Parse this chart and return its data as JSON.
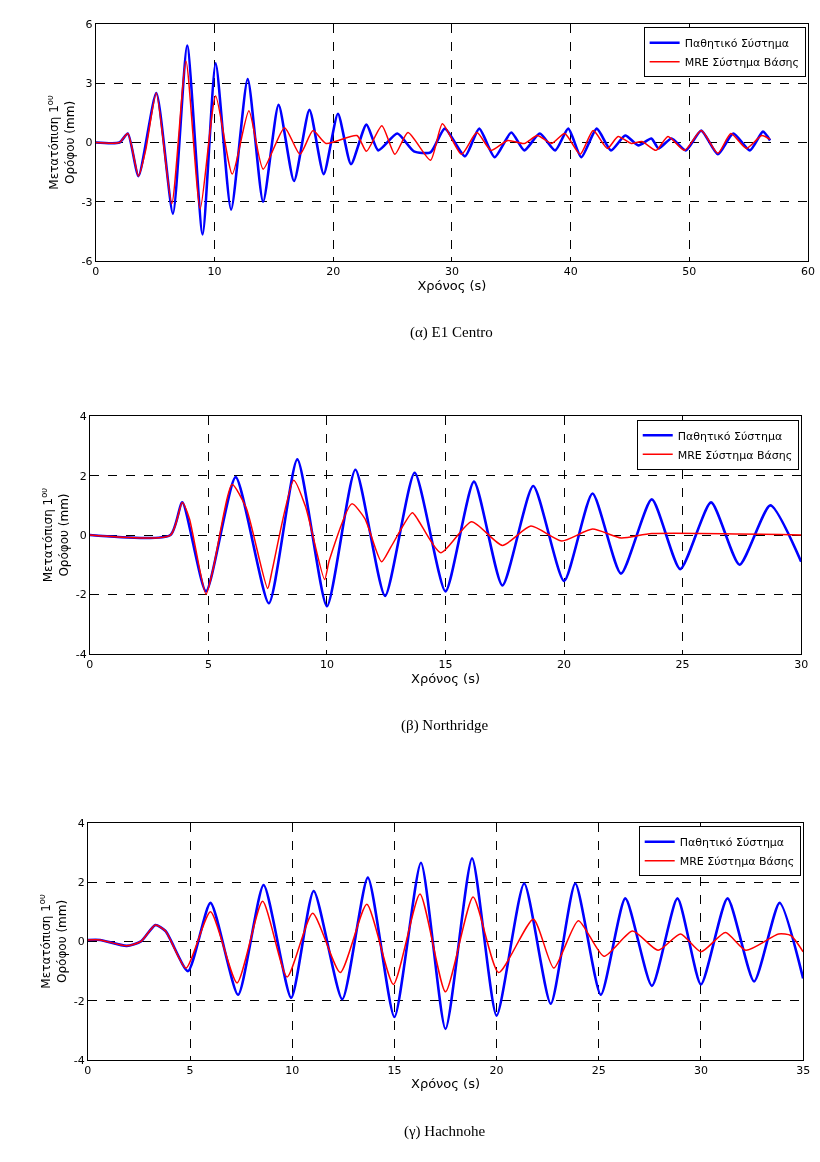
{
  "chart_data": [
    {
      "type": "line",
      "xlabel": "Χρόνος (s)",
      "ylabel": "Μετατόπιση 1$^{ου}$\nΟρόφου (mm)",
      "xlim": [
        0,
        60
      ],
      "xticks": [
        0,
        10,
        20,
        30,
        40,
        50,
        60
      ],
      "ylim": [
        -6,
        6
      ],
      "yticks": [
        -6,
        -3,
        0,
        3,
        6
      ],
      "grid": true,
      "legend": "top right",
      "line_style": "solid",
      "annotations": [
        "(α) E1 Centro"
      ],
      "series": [
        {
          "name": "Παθητικό Σύστημα",
          "color": "#0000ff",
          "x": [
            0,
            2,
            2.7,
            3.6,
            5.1,
            6.5,
            7.7,
            9.0,
            10.1,
            11.4,
            12.8,
            14.1,
            15.4,
            16.7,
            18.0,
            19.2,
            20.4,
            21.5,
            22.8,
            23.8,
            25.4,
            26.8,
            28.2,
            29.4,
            31.1,
            32.3,
            33.6,
            35,
            36.1,
            37.4,
            38.7,
            39.8,
            40.9,
            42.2,
            43.4,
            44.6,
            45.7,
            46.8,
            47.4,
            48.5,
            49.7,
            51,
            52.4,
            53.7,
            55.1,
            56.2,
            56.8
          ],
          "values": [
            0,
            0,
            0.45,
            -1.7,
            2.5,
            -3.6,
            4.9,
            -4.65,
            4.0,
            -3.4,
            3.2,
            -3.0,
            1.9,
            -1.95,
            1.65,
            -1.6,
            1.45,
            -1.1,
            0.9,
            -0.4,
            0.45,
            -0.45,
            -0.5,
            0.7,
            -0.7,
            0.7,
            -0.75,
            0.5,
            -0.4,
            0.45,
            -0.4,
            0.7,
            -0.75,
            0.7,
            -0.4,
            0.35,
            -0.15,
            0.2,
            -0.3,
            0.2,
            -0.4,
            0.6,
            -0.6,
            0.45,
            -0.4,
            0.55,
            0.1
          ]
        },
        {
          "name": "MRE Σύστημα Βάσης",
          "color": "#ff0000",
          "x": [
            0,
            2,
            2.7,
            3.6,
            4.2,
            5.1,
            6.4,
            7.6,
            8.8,
            10.1,
            11.5,
            12.9,
            14.1,
            15.9,
            17.2,
            18.3,
            19.4,
            22.0,
            22.8,
            24.1,
            25.2,
            26.3,
            28.2,
            29.2,
            30.8,
            32.1,
            33.3,
            34.7,
            36.1,
            37.2,
            38.4,
            39.5,
            40.8,
            41.9,
            43.1,
            44,
            45.1,
            46,
            47.2,
            48.2,
            49.6,
            51,
            52.4,
            53.5,
            54.8,
            56.1,
            56.8
          ],
          "values": [
            0,
            0,
            0.45,
            -1.7,
            -0.4,
            2.5,
            -3.1,
            4.1,
            -3.35,
            2.35,
            -1.6,
            1.6,
            -1.35,
            0.75,
            -0.6,
            0.6,
            -0.05,
            0.35,
            -0.45,
            0.85,
            -0.6,
            0.5,
            -0.9,
            0.95,
            -0.6,
            0.5,
            -0.4,
            0.1,
            -0.05,
            0.35,
            -0.05,
            0.45,
            -0.6,
            0.6,
            -0.3,
            0.3,
            -0.05,
            0.05,
            -0.4,
            0.3,
            -0.4,
            0.6,
            -0.55,
            0.45,
            -0.3,
            0.35,
            0.15
          ]
        }
      ]
    },
    {
      "type": "line",
      "xlabel": "Χρόνος (s)",
      "ylabel": "Μετατόπιση 1$^{ου}$\nΟρόφου (mm)",
      "xlim": [
        0,
        30
      ],
      "xticks": [
        0,
        5,
        10,
        15,
        20,
        25,
        30
      ],
      "ylim": [
        -4,
        4
      ],
      "yticks": [
        -4,
        -2,
        0,
        2,
        4
      ],
      "grid": true,
      "legend": "top right",
      "line_style": "solid",
      "annotations": [
        "(β) Northridge"
      ],
      "series": [
        {
          "name": "Παθητικό Σύστημα",
          "color": "#0000ff",
          "x": [
            0,
            3.4,
            3.9,
            4.9,
            6.15,
            7.55,
            8.75,
            10.0,
            11.2,
            12.45,
            13.7,
            15.0,
            16.2,
            17.4,
            18.7,
            20.0,
            21.2,
            22.4,
            23.7,
            24.9,
            26.2,
            27.4,
            28.7,
            30.0
          ],
          "values": [
            0,
            0,
            1.1,
            -1.9,
            1.95,
            -2.3,
            2.55,
            -2.4,
            2.2,
            -2.05,
            2.1,
            -1.9,
            1.8,
            -1.7,
            1.65,
            -1.55,
            1.4,
            -1.3,
            1.2,
            -1.15,
            1.1,
            -1.0,
            1.0,
            -0.9
          ]
        },
        {
          "name": "MRE Σύστημα Βάσης",
          "color": "#ff0000",
          "x": [
            0,
            3.4,
            3.9,
            4.2,
            4.9,
            5.2,
            6.0,
            6.6,
            7.5,
            7.7,
            8.6,
            9.1,
            9.9,
            10.1,
            11.05,
            11.6,
            12.3,
            12.7,
            13.6,
            13.85,
            14.8,
            16.1,
            17.4,
            18.6,
            19.9,
            21.2,
            22.4,
            23.7,
            30
          ],
          "values": [
            0,
            0,
            1.1,
            0.55,
            -2.0,
            -1.15,
            1.7,
            0.9,
            -1.8,
            -1.15,
            1.85,
            0.95,
            -1.5,
            -0.85,
            1.05,
            0.55,
            -0.9,
            -0.4,
            0.75,
            0.5,
            -0.6,
            0.45,
            -0.35,
            0.3,
            -0.2,
            0.2,
            -0.1,
            0.05,
            0
          ]
        }
      ]
    },
    {
      "type": "line",
      "xlabel": "Χρόνος (s)",
      "ylabel": "Μετατόπιση 1$^{ου}$\nΟρόφου (mm)",
      "xlim": [
        0,
        35
      ],
      "xticks": [
        0,
        5,
        10,
        15,
        20,
        25,
        30,
        35
      ],
      "ylim": [
        -4,
        4
      ],
      "yticks": [
        -4,
        -2,
        0,
        2,
        4
      ],
      "grid": true,
      "legend": "top right",
      "line_style": "solid",
      "annotations": [
        "(γ) Hachnohe"
      ],
      "series": [
        {
          "name": "Παθητικό Σύστημα",
          "color": "#0000ff",
          "x": [
            0,
            0.6,
            1.9,
            2.6,
            3.3,
            3.8,
            4.9,
            6.0,
            7.35,
            8.6,
            9.95,
            11.05,
            12.45,
            13.7,
            15.0,
            16.3,
            17.5,
            18.8,
            20.0,
            21.35,
            22.65,
            23.85,
            25.1,
            26.3,
            27.6,
            28.85,
            30.0,
            31.3,
            32.6,
            33.85,
            35
          ],
          "values": [
            0.05,
            0.05,
            -0.15,
            0,
            0.55,
            0.35,
            -1.0,
            1.3,
            -1.8,
            1.9,
            -1.9,
            1.7,
            -1.95,
            2.15,
            -2.55,
            2.65,
            -2.95,
            2.8,
            -2.5,
            1.95,
            -2.1,
            1.95,
            -1.8,
            1.45,
            -1.5,
            1.45,
            -1.45,
            1.45,
            -1.35,
            1.3,
            -1.25
          ]
        },
        {
          "name": "MRE Σύστημα Βάσης",
          "color": "#ff0000",
          "x": [
            0,
            0.6,
            1.9,
            2.6,
            3.3,
            3.8,
            4.8,
            6.0,
            7.3,
            8.55,
            9.75,
            11.0,
            12.35,
            13.65,
            14.95,
            16.25,
            17.5,
            18.85,
            20.1,
            21.8,
            22.8,
            24.0,
            25.25,
            26.65,
            27.9,
            29.0,
            30.0,
            31.2,
            32.2,
            33.8,
            34.4,
            35
          ],
          "values": [
            0.05,
            0.05,
            -0.15,
            0,
            0.55,
            0.35,
            -0.9,
            1.0,
            -1.4,
            1.35,
            -1.2,
            0.95,
            -1.05,
            1.25,
            -1.45,
            1.6,
            -1.7,
            1.5,
            -1.05,
            0.75,
            -0.9,
            0.7,
            -0.5,
            0.35,
            -0.3,
            0.25,
            -0.35,
            0.3,
            -0.3,
            0.25,
            0.2,
            -0.35
          ]
        }
      ]
    }
  ]
}
